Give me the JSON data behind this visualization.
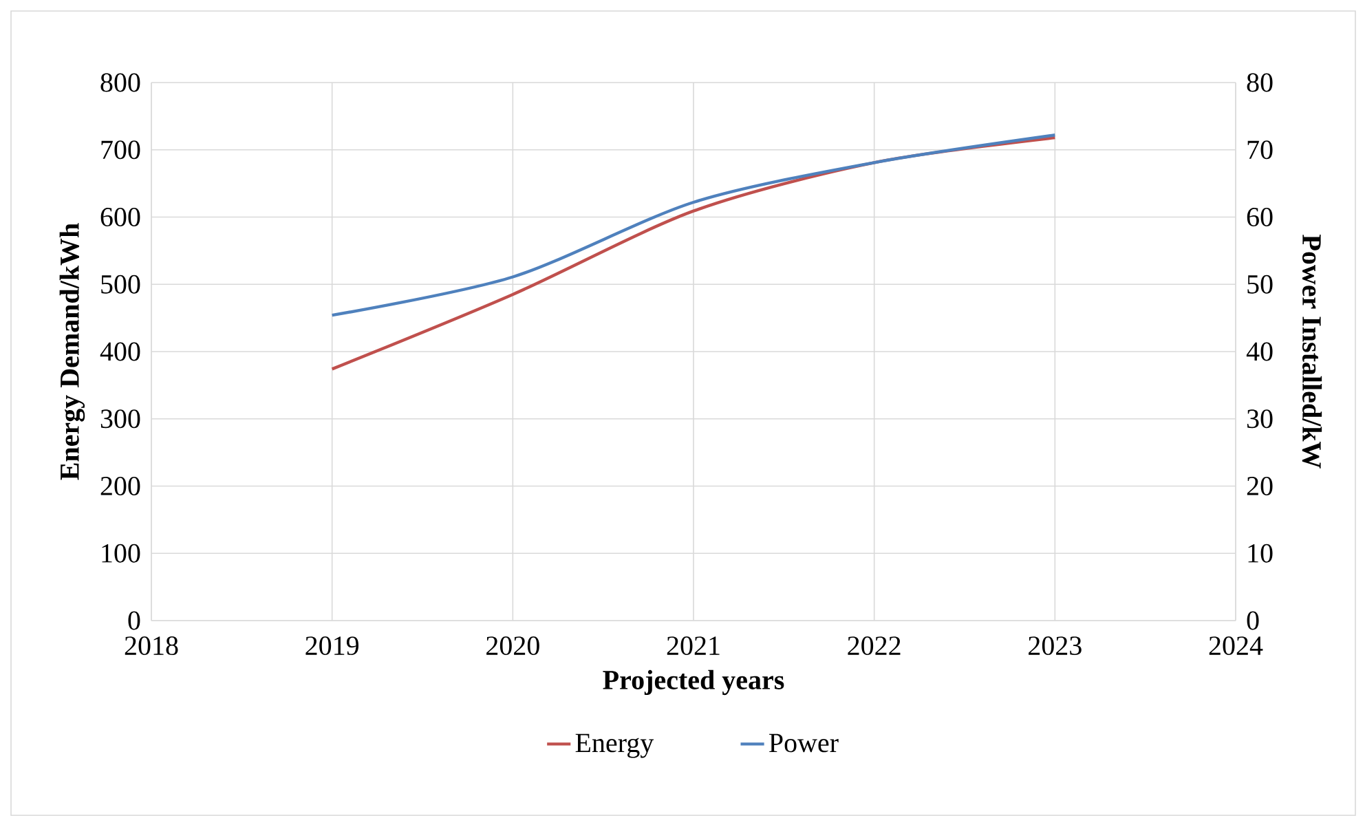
{
  "chart_data": {
    "type": "line",
    "xlabel": "Projected years",
    "ylabel": "Energy Demand/kWh",
    "y2label": "Power Installed/kW",
    "x": [
      2019,
      2020,
      2021,
      2022,
      2023
    ],
    "series": [
      {
        "name": "Energy",
        "color": "#c0504d",
        "values": [
          374,
          485,
          609,
          681,
          718
        ]
      },
      {
        "name": "Power",
        "color": "#4f81bd",
        "axis": "y2",
        "values": [
          45.4,
          51.1,
          62.2,
          68.1,
          72.2
        ]
      }
    ],
    "xlim": [
      2018,
      2024
    ],
    "xticks": [
      2018,
      2019,
      2020,
      2021,
      2022,
      2023,
      2024
    ],
    "ylim": [
      0,
      800
    ],
    "yticks": [
      0,
      100,
      200,
      300,
      400,
      500,
      600,
      700,
      800
    ],
    "y2lim": [
      0,
      80
    ],
    "y2ticks": [
      0,
      10,
      20,
      30,
      40,
      50,
      60,
      70,
      80
    ],
    "grid": true,
    "legend": "bottom",
    "marker": "none",
    "line_style": "solid"
  }
}
